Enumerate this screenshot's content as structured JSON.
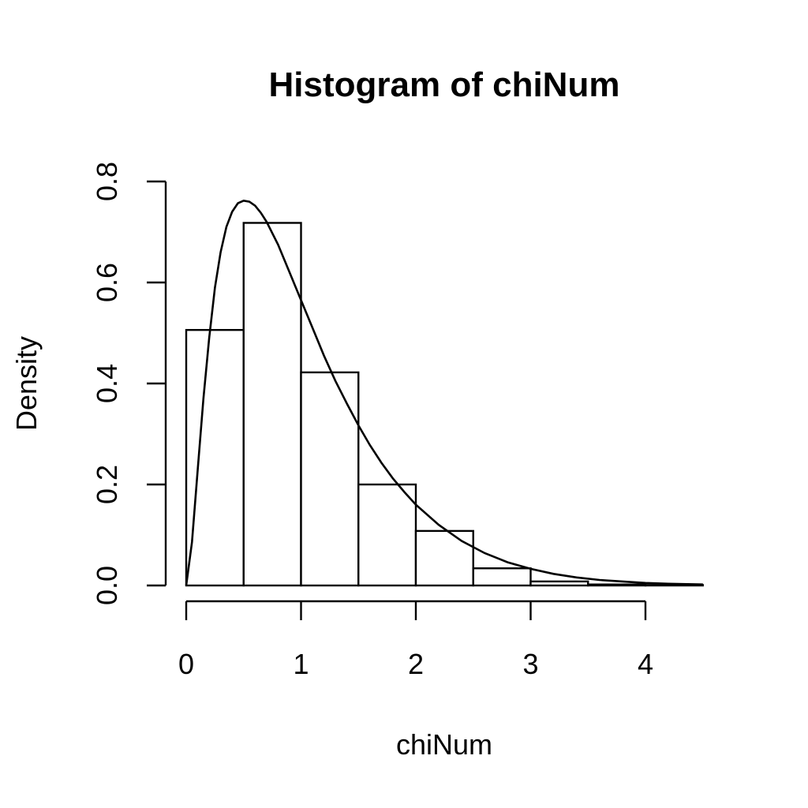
{
  "chart_data": {
    "type": "bar",
    "title": "Histogram of chiNum",
    "xlabel": "chiNum",
    "ylabel": "Density",
    "xlim": [
      0,
      4.5
    ],
    "ylim": [
      0,
      0.8
    ],
    "x_ticks": [
      0,
      1,
      2,
      3,
      4
    ],
    "y_ticks": [
      0.0,
      0.2,
      0.4,
      0.6,
      0.8
    ],
    "x_tick_labels": [
      "0",
      "1",
      "2",
      "3",
      "4"
    ],
    "y_tick_labels": [
      "0.0",
      "0.2",
      "0.4",
      "0.6",
      "0.8"
    ],
    "bins": [
      {
        "from": 0.0,
        "to": 0.5,
        "density": 0.506
      },
      {
        "from": 0.5,
        "to": 1.0,
        "density": 0.718
      },
      {
        "from": 1.0,
        "to": 1.5,
        "density": 0.422
      },
      {
        "from": 1.5,
        "to": 2.0,
        "density": 0.2
      },
      {
        "from": 2.0,
        "to": 2.5,
        "density": 0.108
      },
      {
        "from": 2.5,
        "to": 3.0,
        "density": 0.034
      },
      {
        "from": 3.0,
        "to": 3.5,
        "density": 0.008
      },
      {
        "from": 3.5,
        "to": 4.0,
        "density": 0.002
      },
      {
        "from": 4.0,
        "to": 4.5,
        "density": 0.001
      }
    ],
    "curve": {
      "x": [
        0.0,
        0.05,
        0.1,
        0.15,
        0.2,
        0.25,
        0.3,
        0.35,
        0.4,
        0.45,
        0.5,
        0.55,
        0.6,
        0.65,
        0.7,
        0.8,
        0.9,
        1.0,
        1.1,
        1.2,
        1.3,
        1.4,
        1.5,
        1.6,
        1.7,
        1.8,
        1.9,
        2.0,
        2.2,
        2.4,
        2.6,
        2.8,
        3.0,
        3.2,
        3.4,
        3.6,
        3.8,
        4.0,
        4.2,
        4.5
      ],
      "y": [
        0.0,
        0.086,
        0.23,
        0.37,
        0.49,
        0.59,
        0.66,
        0.71,
        0.74,
        0.757,
        0.762,
        0.76,
        0.752,
        0.738,
        0.72,
        0.675,
        0.62,
        0.565,
        0.51,
        0.455,
        0.405,
        0.36,
        0.317,
        0.278,
        0.243,
        0.212,
        0.185,
        0.16,
        0.12,
        0.088,
        0.064,
        0.046,
        0.033,
        0.023,
        0.016,
        0.011,
        0.008,
        0.005,
        0.0035,
        0.002
      ]
    }
  }
}
